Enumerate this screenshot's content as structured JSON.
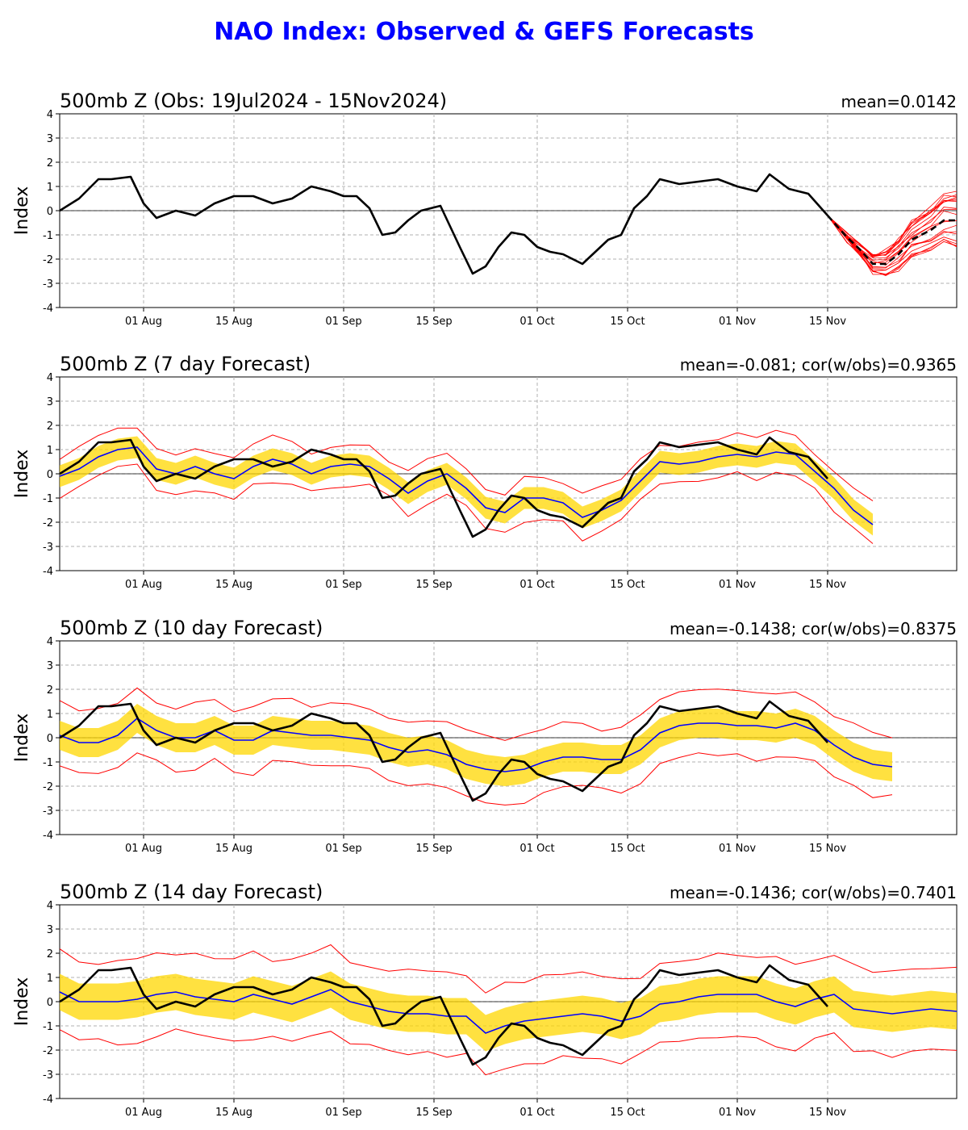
{
  "title": "NAO Index: Observed & GEFS Forecasts",
  "colors": {
    "title": "#0000ff",
    "observed": "#000000",
    "ensemble_mean": "#0000ff",
    "ensemble_spread": "#ffd700",
    "ensemble_extremes": "#ff0000",
    "zero_line": "#000000",
    "grid": "#b0b0b0"
  },
  "axes_common": {
    "ylabel": "Index",
    "ylim": [
      -4,
      4
    ],
    "yticks": [
      "4",
      "3",
      "2",
      "1",
      "0",
      "-1",
      "-2",
      "-3",
      "-4"
    ],
    "xlim": [
      "2024-07-19",
      "2024-12-05"
    ],
    "xticks": [
      {
        "date": "2024-08-01",
        "label": "01 Aug"
      },
      {
        "date": "2024-08-15",
        "label": "15 Aug"
      },
      {
        "date": "2024-09-01",
        "label": "01 Sep"
      },
      {
        "date": "2024-09-15",
        "label": "15 Sep"
      },
      {
        "date": "2024-10-01",
        "label": "01 Oct"
      },
      {
        "date": "2024-10-15",
        "label": "15 Oct"
      },
      {
        "date": "2024-11-01",
        "label": "01 Nov"
      },
      {
        "date": "2024-11-15",
        "label": "15 Nov"
      }
    ],
    "grid": true
  },
  "chart_data": [
    {
      "type": "line",
      "title": "500mb Z (Obs: 19Jul2024 - 15Nov2024)",
      "stat_label": "mean=0.0142",
      "series": [
        {
          "kind": "observed",
          "x": [
            "2024-07-19",
            "2024-07-22",
            "2024-07-25",
            "2024-07-27",
            "2024-07-30",
            "2024-08-01",
            "2024-08-03",
            "2024-08-06",
            "2024-08-09",
            "2024-08-12",
            "2024-08-15",
            "2024-08-18",
            "2024-08-21",
            "2024-08-24",
            "2024-08-27",
            "2024-08-30",
            "2024-09-01",
            "2024-09-03",
            "2024-09-05",
            "2024-09-07",
            "2024-09-09",
            "2024-09-11",
            "2024-09-13",
            "2024-09-16",
            "2024-09-19",
            "2024-09-21",
            "2024-09-23",
            "2024-09-25",
            "2024-09-27",
            "2024-09-29",
            "2024-10-01",
            "2024-10-03",
            "2024-10-05",
            "2024-10-08",
            "2024-10-10",
            "2024-10-12",
            "2024-10-14",
            "2024-10-16",
            "2024-10-18",
            "2024-10-20",
            "2024-10-23",
            "2024-10-26",
            "2024-10-29",
            "2024-11-01",
            "2024-11-04",
            "2024-11-06",
            "2024-11-09",
            "2024-11-12",
            "2024-11-15"
          ],
          "y": [
            0.0,
            0.5,
            1.3,
            1.3,
            1.4,
            0.3,
            -0.3,
            0.0,
            -0.2,
            0.3,
            0.6,
            0.6,
            0.3,
            0.5,
            1.0,
            0.8,
            0.6,
            0.6,
            0.1,
            -1.0,
            -0.9,
            -0.4,
            0.0,
            0.2,
            -1.5,
            -2.6,
            -2.3,
            -1.5,
            -0.9,
            -1.0,
            -1.5,
            -1.7,
            -1.8,
            -2.2,
            -1.7,
            -1.2,
            -1.0,
            0.1,
            0.6,
            1.3,
            1.1,
            1.2,
            1.3,
            1.0,
            0.8,
            1.5,
            0.9,
            0.7,
            -0.2
          ]
        },
        {
          "kind": "forecast-mean",
          "style": "dashed",
          "x": [
            "2024-11-15",
            "2024-11-18",
            "2024-11-20",
            "2024-11-22",
            "2024-11-24",
            "2024-11-26",
            "2024-11-28",
            "2024-12-01",
            "2024-12-03",
            "2024-12-05"
          ],
          "y": [
            -0.2,
            -1.1,
            -1.6,
            -2.2,
            -2.2,
            -1.8,
            -1.2,
            -0.8,
            -0.4,
            -0.4
          ]
        }
      ],
      "ensemble_members": 20
    },
    {
      "type": "line",
      "title": "500mb Z (7 day Forecast)",
      "stat_label": "mean=-0.081; cor(w/obs)=0.9365",
      "lead_days": 7,
      "series": [
        {
          "kind": "ensemble-mean",
          "x": [
            "2024-07-19",
            "2024-07-22",
            "2024-07-25",
            "2024-07-28",
            "2024-07-31",
            "2024-08-03",
            "2024-08-06",
            "2024-08-09",
            "2024-08-12",
            "2024-08-15",
            "2024-08-18",
            "2024-08-21",
            "2024-08-24",
            "2024-08-27",
            "2024-08-30",
            "2024-09-02",
            "2024-09-05",
            "2024-09-08",
            "2024-09-11",
            "2024-09-14",
            "2024-09-17",
            "2024-09-20",
            "2024-09-23",
            "2024-09-26",
            "2024-09-29",
            "2024-10-02",
            "2024-10-05",
            "2024-10-08",
            "2024-10-11",
            "2024-10-14",
            "2024-10-17",
            "2024-10-20",
            "2024-10-23",
            "2024-10-26",
            "2024-10-29",
            "2024-11-01",
            "2024-11-04",
            "2024-11-07",
            "2024-11-10",
            "2024-11-13",
            "2024-11-16",
            "2024-11-19",
            "2024-11-22"
          ],
          "y": [
            -0.1,
            0.2,
            0.7,
            1.0,
            1.1,
            0.2,
            0.0,
            0.3,
            0.0,
            -0.2,
            0.3,
            0.6,
            0.4,
            0.0,
            0.3,
            0.4,
            0.3,
            -0.2,
            -0.8,
            -0.3,
            0.0,
            -0.6,
            -1.4,
            -1.6,
            -1.0,
            -1.0,
            -1.2,
            -1.8,
            -1.5,
            -1.1,
            -0.3,
            0.5,
            0.4,
            0.5,
            0.7,
            0.8,
            0.7,
            0.9,
            0.8,
            0.1,
            -0.6,
            -1.5,
            -2.1
          ]
        },
        {
          "kind": "observed",
          "x": [
            "2024-07-19",
            "2024-07-22",
            "2024-07-25",
            "2024-07-27",
            "2024-07-30",
            "2024-08-01",
            "2024-08-03",
            "2024-08-06",
            "2024-08-09",
            "2024-08-12",
            "2024-08-15",
            "2024-08-18",
            "2024-08-21",
            "2024-08-24",
            "2024-08-27",
            "2024-08-30",
            "2024-09-01",
            "2024-09-03",
            "2024-09-05",
            "2024-09-07",
            "2024-09-09",
            "2024-09-11",
            "2024-09-13",
            "2024-09-16",
            "2024-09-19",
            "2024-09-21",
            "2024-09-23",
            "2024-09-25",
            "2024-09-27",
            "2024-09-29",
            "2024-10-01",
            "2024-10-03",
            "2024-10-05",
            "2024-10-08",
            "2024-10-10",
            "2024-10-12",
            "2024-10-14",
            "2024-10-16",
            "2024-10-18",
            "2024-10-20",
            "2024-10-23",
            "2024-10-26",
            "2024-10-29",
            "2024-11-01",
            "2024-11-04",
            "2024-11-06",
            "2024-11-09",
            "2024-11-12",
            "2024-11-15"
          ],
          "y": [
            0.0,
            0.5,
            1.3,
            1.3,
            1.4,
            0.3,
            -0.3,
            0.0,
            -0.2,
            0.3,
            0.6,
            0.6,
            0.3,
            0.5,
            1.0,
            0.8,
            0.6,
            0.6,
            0.1,
            -1.0,
            -0.9,
            -0.4,
            0.0,
            0.2,
            -1.5,
            -2.6,
            -2.3,
            -1.5,
            -0.9,
            -1.0,
            -1.5,
            -1.7,
            -1.8,
            -2.2,
            -1.7,
            -1.2,
            -1.0,
            0.1,
            0.6,
            1.3,
            1.1,
            1.2,
            1.3,
            1.0,
            0.8,
            1.5,
            0.9,
            0.7,
            -0.2
          ]
        }
      ],
      "spread_half_width": 0.45,
      "extremes_half_width": 0.85
    },
    {
      "type": "line",
      "title": "500mb Z (10 day Forecast)",
      "stat_label": "mean=-0.1438; cor(w/obs)=0.8375",
      "lead_days": 10,
      "series": [
        {
          "kind": "ensemble-mean",
          "x": [
            "2024-07-19",
            "2024-07-22",
            "2024-07-25",
            "2024-07-28",
            "2024-07-31",
            "2024-08-03",
            "2024-08-06",
            "2024-08-09",
            "2024-08-12",
            "2024-08-15",
            "2024-08-18",
            "2024-08-21",
            "2024-08-24",
            "2024-08-27",
            "2024-08-30",
            "2024-09-02",
            "2024-09-05",
            "2024-09-08",
            "2024-09-11",
            "2024-09-14",
            "2024-09-17",
            "2024-09-20",
            "2024-09-23",
            "2024-09-26",
            "2024-09-29",
            "2024-10-02",
            "2024-10-05",
            "2024-10-08",
            "2024-10-11",
            "2024-10-14",
            "2024-10-17",
            "2024-10-20",
            "2024-10-23",
            "2024-10-26",
            "2024-10-29",
            "2024-11-01",
            "2024-11-04",
            "2024-11-07",
            "2024-11-10",
            "2024-11-13",
            "2024-11-16",
            "2024-11-19",
            "2024-11-22",
            "2024-11-25"
          ],
          "y": [
            0.1,
            -0.2,
            -0.2,
            0.1,
            0.8,
            0.3,
            0.0,
            0.0,
            0.3,
            -0.1,
            -0.1,
            0.3,
            0.2,
            0.1,
            0.1,
            0.0,
            -0.1,
            -0.4,
            -0.6,
            -0.5,
            -0.7,
            -1.1,
            -1.3,
            -1.4,
            -1.3,
            -1.0,
            -0.8,
            -0.8,
            -0.9,
            -0.9,
            -0.5,
            0.2,
            0.5,
            0.6,
            0.6,
            0.5,
            0.5,
            0.4,
            0.6,
            0.3,
            -0.3,
            -0.8,
            -1.1,
            -1.2
          ]
        },
        {
          "kind": "observed",
          "x": [
            "2024-07-19",
            "2024-07-22",
            "2024-07-25",
            "2024-07-27",
            "2024-07-30",
            "2024-08-01",
            "2024-08-03",
            "2024-08-06",
            "2024-08-09",
            "2024-08-12",
            "2024-08-15",
            "2024-08-18",
            "2024-08-21",
            "2024-08-24",
            "2024-08-27",
            "2024-08-30",
            "2024-09-01",
            "2024-09-03",
            "2024-09-05",
            "2024-09-07",
            "2024-09-09",
            "2024-09-11",
            "2024-09-13",
            "2024-09-16",
            "2024-09-19",
            "2024-09-21",
            "2024-09-23",
            "2024-09-25",
            "2024-09-27",
            "2024-09-29",
            "2024-10-01",
            "2024-10-03",
            "2024-10-05",
            "2024-10-08",
            "2024-10-10",
            "2024-10-12",
            "2024-10-14",
            "2024-10-16",
            "2024-10-18",
            "2024-10-20",
            "2024-10-23",
            "2024-10-26",
            "2024-10-29",
            "2024-11-01",
            "2024-11-04",
            "2024-11-06",
            "2024-11-09",
            "2024-11-12",
            "2024-11-15"
          ],
          "y": [
            0.0,
            0.5,
            1.3,
            1.3,
            1.4,
            0.3,
            -0.3,
            0.0,
            -0.2,
            0.3,
            0.6,
            0.6,
            0.3,
            0.5,
            1.0,
            0.8,
            0.6,
            0.6,
            0.1,
            -1.0,
            -0.9,
            -0.4,
            0.0,
            0.2,
            -1.5,
            -2.6,
            -2.3,
            -1.5,
            -0.9,
            -1.0,
            -1.5,
            -1.7,
            -1.8,
            -2.2,
            -1.7,
            -1.2,
            -1.0,
            0.1,
            0.6,
            1.3,
            1.1,
            1.2,
            1.3,
            1.0,
            0.8,
            1.5,
            0.9,
            0.7,
            -0.2
          ]
        }
      ],
      "spread_half_width": 0.6,
      "extremes_half_width": 1.3
    },
    {
      "type": "line",
      "title": "500mb Z (14 day Forecast)",
      "stat_label": "mean=-0.1436; cor(w/obs)=0.7401",
      "lead_days": 14,
      "series": [
        {
          "kind": "ensemble-mean",
          "x": [
            "2024-07-19",
            "2024-07-22",
            "2024-07-25",
            "2024-07-28",
            "2024-07-31",
            "2024-08-03",
            "2024-08-06",
            "2024-08-09",
            "2024-08-12",
            "2024-08-15",
            "2024-08-18",
            "2024-08-21",
            "2024-08-24",
            "2024-08-27",
            "2024-08-30",
            "2024-09-02",
            "2024-09-05",
            "2024-09-08",
            "2024-09-11",
            "2024-09-14",
            "2024-09-17",
            "2024-09-20",
            "2024-09-23",
            "2024-09-26",
            "2024-09-29",
            "2024-10-02",
            "2024-10-05",
            "2024-10-08",
            "2024-10-11",
            "2024-10-14",
            "2024-10-17",
            "2024-10-20",
            "2024-10-23",
            "2024-10-26",
            "2024-10-29",
            "2024-11-01",
            "2024-11-04",
            "2024-11-07",
            "2024-11-10",
            "2024-11-13",
            "2024-11-16",
            "2024-11-19",
            "2024-11-22",
            "2024-11-25",
            "2024-11-28",
            "2024-12-01",
            "2024-12-05"
          ],
          "y": [
            0.4,
            0.0,
            0.0,
            0.0,
            0.1,
            0.3,
            0.4,
            0.2,
            0.1,
            0.0,
            0.3,
            0.1,
            -0.1,
            0.2,
            0.5,
            0.0,
            -0.2,
            -0.4,
            -0.5,
            -0.5,
            -0.6,
            -0.6,
            -1.3,
            -1.0,
            -0.8,
            -0.7,
            -0.6,
            -0.5,
            -0.6,
            -0.8,
            -0.6,
            -0.1,
            0.0,
            0.2,
            0.3,
            0.3,
            0.3,
            0.0,
            -0.2,
            0.1,
            0.3,
            -0.3,
            -0.4,
            -0.5,
            -0.4,
            -0.3,
            -0.4
          ]
        },
        {
          "kind": "observed",
          "x": [
            "2024-07-19",
            "2024-07-22",
            "2024-07-25",
            "2024-07-27",
            "2024-07-30",
            "2024-08-01",
            "2024-08-03",
            "2024-08-06",
            "2024-08-09",
            "2024-08-12",
            "2024-08-15",
            "2024-08-18",
            "2024-08-21",
            "2024-08-24",
            "2024-08-27",
            "2024-08-30",
            "2024-09-01",
            "2024-09-03",
            "2024-09-05",
            "2024-09-07",
            "2024-09-09",
            "2024-09-11",
            "2024-09-13",
            "2024-09-16",
            "2024-09-19",
            "2024-09-21",
            "2024-09-23",
            "2024-09-25",
            "2024-09-27",
            "2024-09-29",
            "2024-10-01",
            "2024-10-03",
            "2024-10-05",
            "2024-10-08",
            "2024-10-10",
            "2024-10-12",
            "2024-10-14",
            "2024-10-16",
            "2024-10-18",
            "2024-10-20",
            "2024-10-23",
            "2024-10-26",
            "2024-10-29",
            "2024-11-01",
            "2024-11-04",
            "2024-11-06",
            "2024-11-09",
            "2024-11-12",
            "2024-11-15"
          ],
          "y": [
            0.0,
            0.5,
            1.3,
            1.3,
            1.4,
            0.3,
            -0.3,
            0.0,
            -0.2,
            0.3,
            0.6,
            0.6,
            0.3,
            0.5,
            1.0,
            0.8,
            0.6,
            0.6,
            0.1,
            -1.0,
            -0.9,
            -0.4,
            0.0,
            0.2,
            -1.5,
            -2.6,
            -2.3,
            -1.5,
            -0.9,
            -1.0,
            -1.5,
            -1.7,
            -1.8,
            -2.2,
            -1.7,
            -1.2,
            -1.0,
            0.1,
            0.6,
            1.3,
            1.1,
            1.2,
            1.3,
            1.0,
            0.8,
            1.5,
            0.9,
            0.7,
            -0.2
          ]
        }
      ],
      "spread_half_width": 0.75,
      "extremes_half_width": 1.7
    }
  ]
}
